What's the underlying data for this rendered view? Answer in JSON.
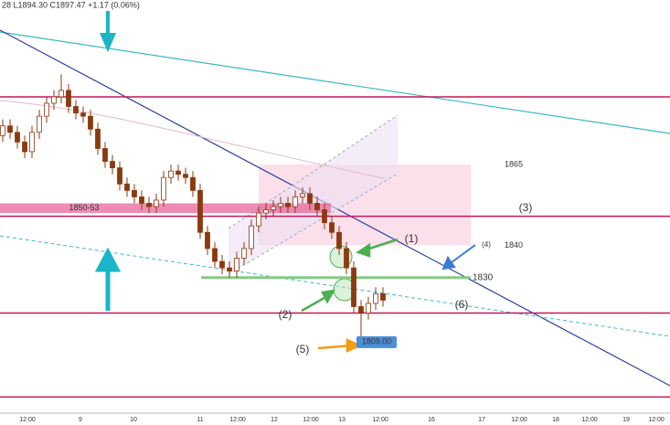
{
  "chart_data": {
    "type": "candlestick",
    "header": "28 L1894.30 C1897.47 +1.17 (0.06%)",
    "ylim": [
      1788,
      1916
    ],
    "x_labels": [
      "12:00",
      "9",
      "10",
      "11",
      "12:00",
      "12",
      "12:00",
      "13",
      "12:00",
      "16",
      "17",
      "12:00",
      "18",
      "12:00",
      "19",
      "12:00"
    ],
    "up_color": "#ffffff",
    "down_color": "#8b3a0f",
    "open": [
      1874,
      1877,
      1875,
      1872,
      1869,
      1875,
      1880,
      1884,
      1886,
      1888,
      1883,
      1881,
      1880,
      1876,
      1870,
      1866,
      1864,
      1859,
      1857,
      1855,
      1853,
      1852,
      1854,
      1861,
      1863,
      1862,
      1861,
      1857,
      1844,
      1839,
      1835,
      1833,
      1832,
      1836,
      1839,
      1846,
      1850,
      1851,
      1852,
      1853,
      1852,
      1855,
      1856,
      1853,
      1851,
      1847,
      1844,
      1839,
      1833,
      1821,
      1819,
      1822,
      1825
    ],
    "high": [
      1879,
      1879,
      1877,
      1874,
      1877,
      1882,
      1886,
      1888,
      1893,
      1890,
      1885,
      1883,
      1882,
      1878,
      1872,
      1868,
      1866,
      1861,
      1859,
      1857,
      1855,
      1856,
      1863,
      1865,
      1865,
      1864,
      1863,
      1859,
      1846,
      1841,
      1837,
      1835,
      1838,
      1841,
      1848,
      1852,
      1853,
      1854,
      1855,
      1855,
      1857,
      1858,
      1858,
      1855,
      1853,
      1849,
      1846,
      1841,
      1835,
      1823,
      1824,
      1827,
      1827
    ],
    "low": [
      1872,
      1873,
      1870,
      1867,
      1867,
      1873,
      1878,
      1882,
      1884,
      1881,
      1879,
      1878,
      1874,
      1868,
      1864,
      1862,
      1857,
      1855,
      1853,
      1851,
      1850,
      1850,
      1852,
      1859,
      1860,
      1859,
      1855,
      1842,
      1837,
      1833,
      1831,
      1830,
      1830,
      1834,
      1837,
      1844,
      1848,
      1849,
      1850,
      1850,
      1850,
      1853,
      1851,
      1849,
      1845,
      1842,
      1837,
      1831,
      1819,
      1809,
      1817,
      1820,
      1821
    ],
    "close": [
      1877,
      1875,
      1872,
      1869,
      1875,
      1880,
      1884,
      1886,
      1888,
      1883,
      1881,
      1880,
      1876,
      1870,
      1866,
      1864,
      1859,
      1857,
      1855,
      1853,
      1852,
      1854,
      1861,
      1863,
      1862,
      1861,
      1857,
      1844,
      1839,
      1835,
      1833,
      1832,
      1836,
      1839,
      1846,
      1850,
      1851,
      1852,
      1853,
      1852,
      1855,
      1856,
      1853,
      1851,
      1847,
      1844,
      1839,
      1833,
      1821,
      1819,
      1822,
      1825,
      1823
    ],
    "zone": {
      "top": 1865,
      "bottom": 1840,
      "color": "#f9d3e2"
    },
    "band": {
      "label": "1850-53",
      "low": 1850,
      "high": 1853,
      "color": "#e8679a"
    },
    "support": {
      "value": 1830,
      "color": "#86c986"
    },
    "low_label": {
      "value": 1809,
      "label": "1809.00"
    },
    "lines": [
      {
        "value": 1886,
        "color": "#c2185b"
      },
      {
        "value": 1849,
        "color": "#c2185b"
      },
      {
        "value": 1819,
        "color": "#c2185b"
      },
      {
        "value": 1793,
        "color": "#c2185b"
      }
    ],
    "annotations": [
      "(1)",
      "(2)",
      "(3)",
      "(4)",
      "(5)",
      "(6)"
    ]
  }
}
